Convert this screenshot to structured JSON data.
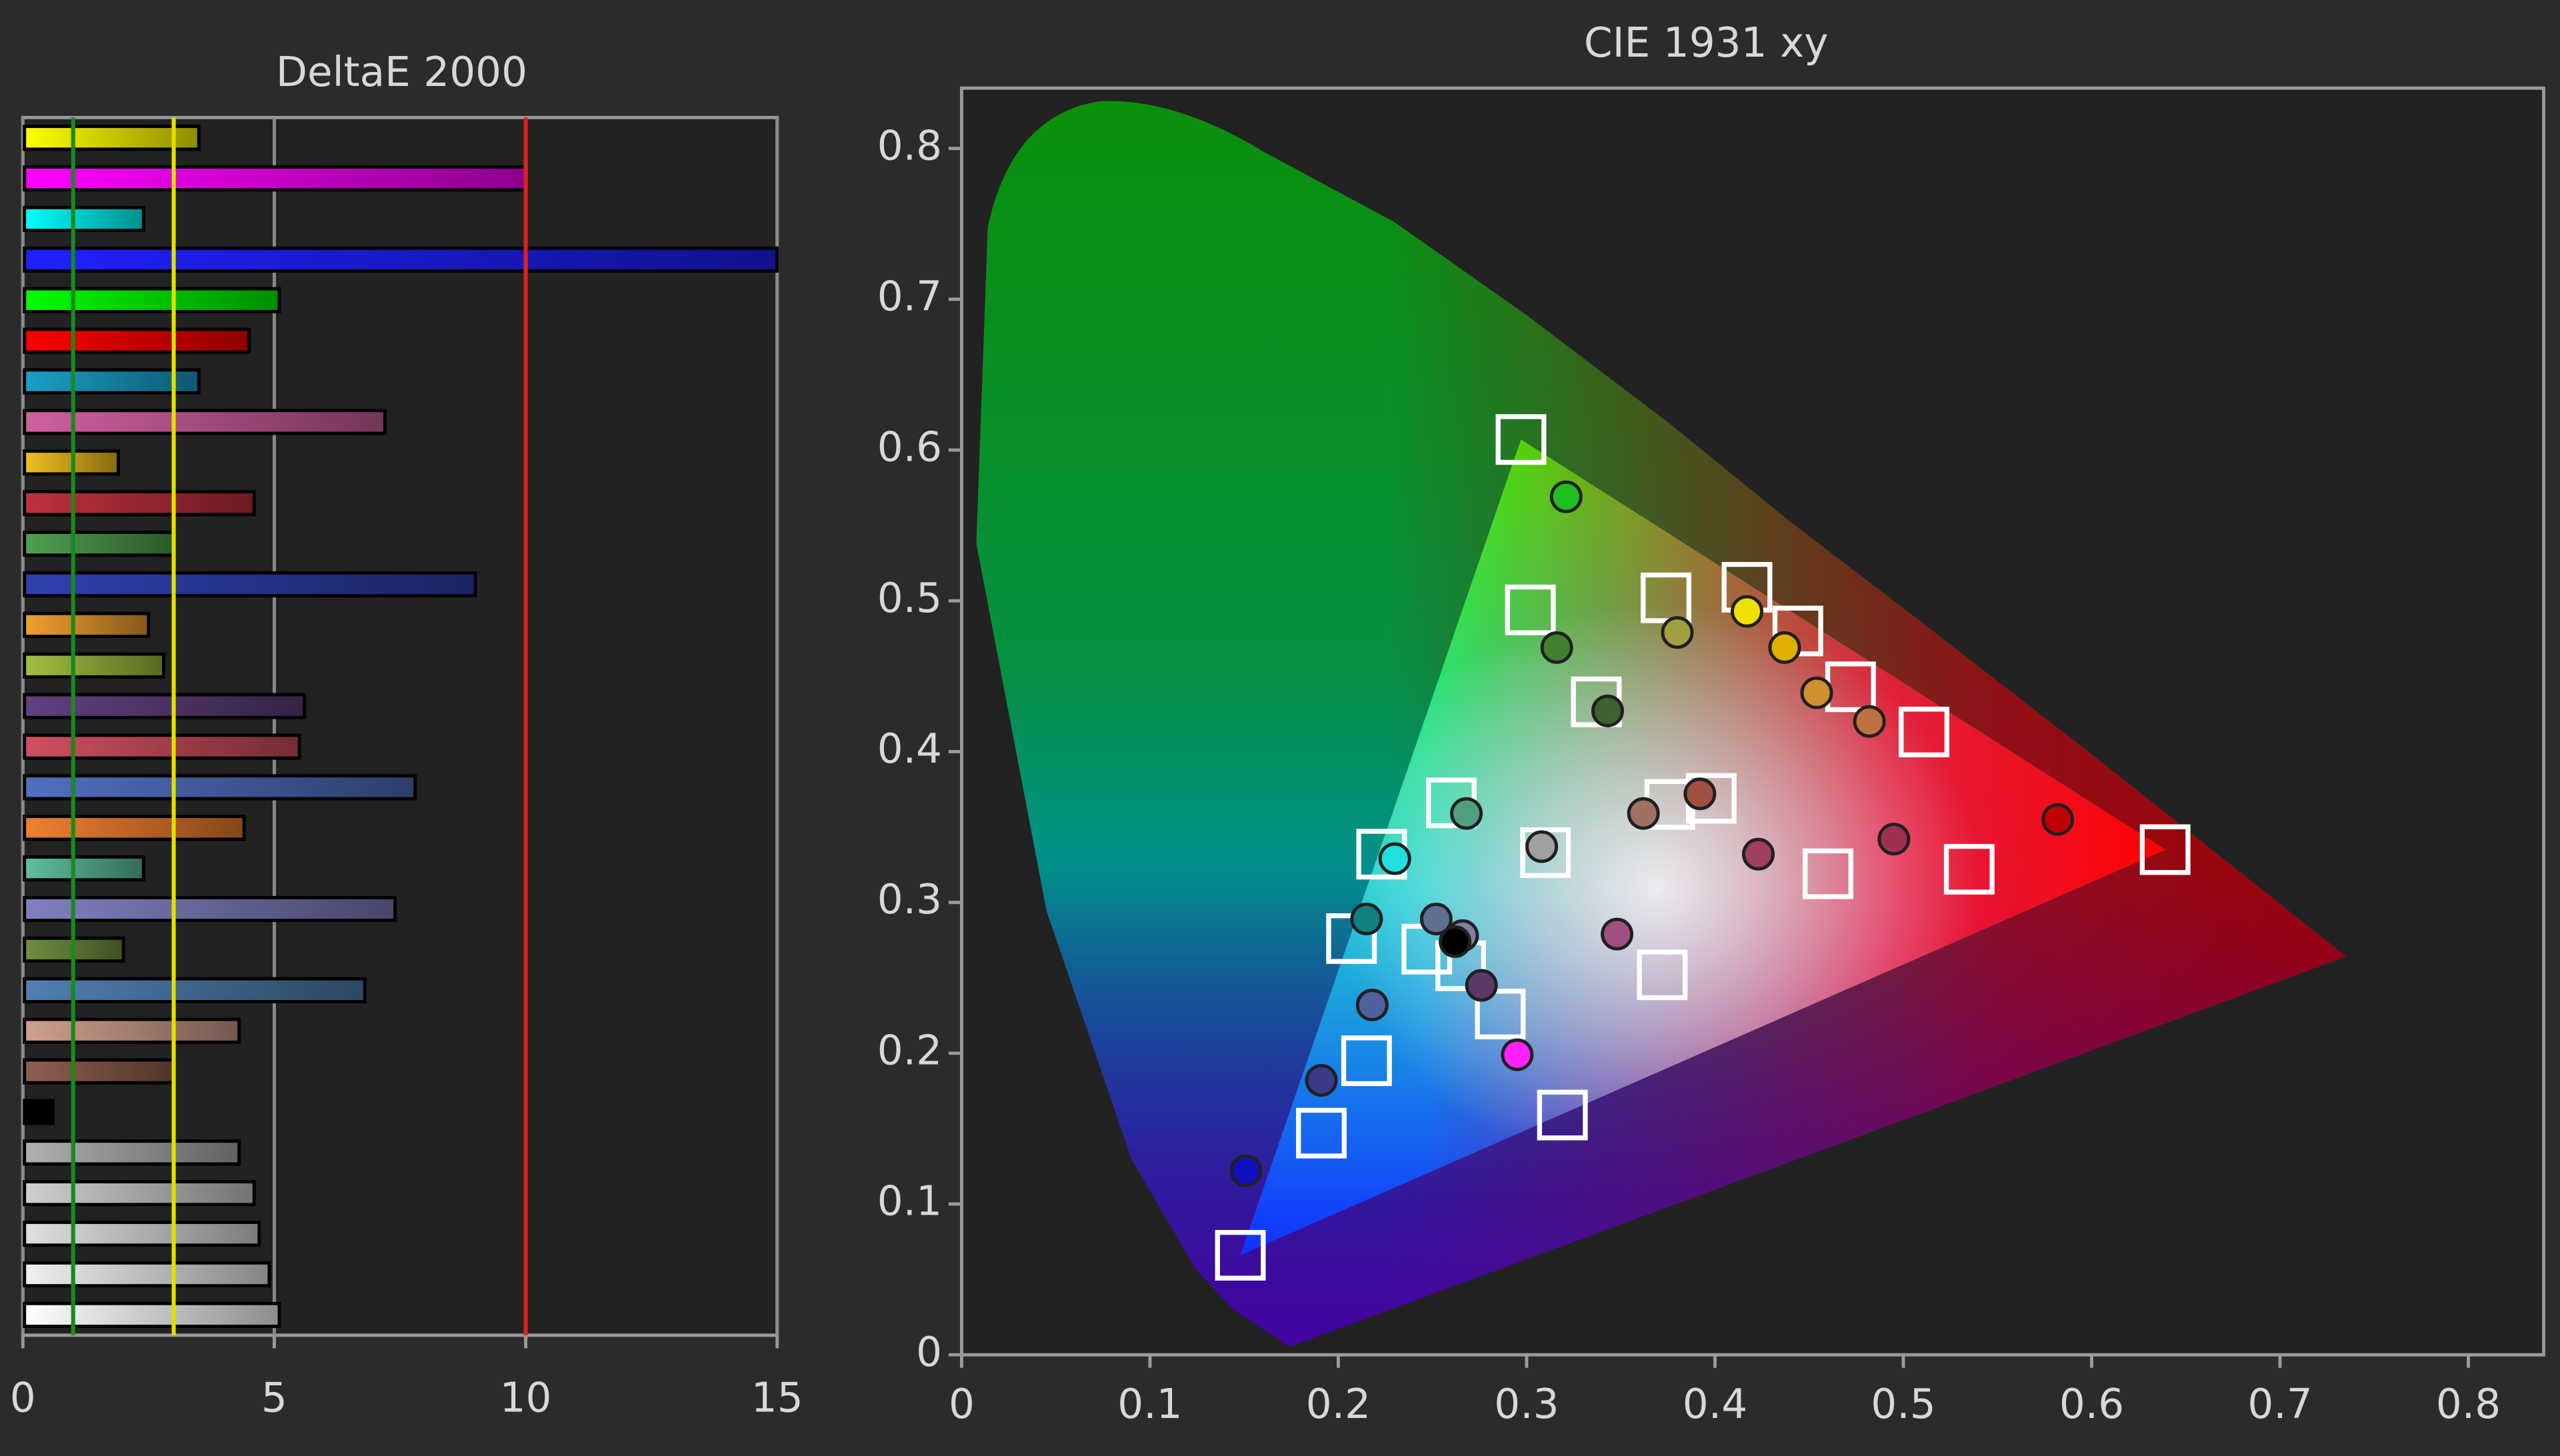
{
  "chart_data": [
    {
      "type": "bar",
      "orientation": "horizontal",
      "title": "DeltaE 2000",
      "values": [
        3.5,
        10.0,
        2.4,
        15,
        5.1,
        4.5,
        3.5,
        7.2,
        1.9,
        4.6,
        3.0,
        9.0,
        2.5,
        2.8,
        5.6,
        5.5,
        7.8,
        4.4,
        2.4,
        7.4,
        2.0,
        6.8,
        4.3,
        3.0,
        0.6,
        4.3,
        4.6,
        4.7,
        4.9,
        5.1
      ],
      "colors": [
        "#ffff00",
        "#ff00ff",
        "#00ffff",
        "#2020ff",
        "#00ff00",
        "#ff0000",
        "#1aa0c8",
        "#d060a0",
        "#f0c020",
        "#c03040",
        "#50a050",
        "#3040b0",
        "#f0a030",
        "#a0c040",
        "#604080",
        "#d05060",
        "#5070c0",
        "#f08030",
        "#60c0a0",
        "#8080c0",
        "#709040",
        "#5080b0",
        "#d0a090",
        "#906050",
        "#000000",
        "#b0b0b0",
        "#d0d0d0",
        "#e0e0e0",
        "#f0f0f0",
        "#ffffff"
      ],
      "xlim": [
        0,
        15
      ],
      "xticks": [
        0,
        5,
        10,
        15
      ],
      "grid": true,
      "reference_lines": [
        {
          "value": 1,
          "color": "#1a8a1a"
        },
        {
          "value": 3,
          "color": "#e0e000"
        },
        {
          "value": 10,
          "color": "#e02020"
        }
      ]
    },
    {
      "type": "scatter",
      "title": "CIE 1931 xy",
      "xlim": [
        0,
        0.84
      ],
      "ylim": [
        0,
        0.84
      ],
      "xticks": [
        0,
        0.1,
        0.2,
        0.3,
        0.4,
        0.5,
        0.6,
        0.7,
        0.8
      ],
      "yticks": [
        0,
        0.1,
        0.2,
        0.3,
        0.4,
        0.5,
        0.6,
        0.7,
        0.8
      ],
      "series": [
        {
          "marker": "square",
          "color": "#ffffff",
          "x": [
            0.639,
            0.297,
            0.148,
            0.417,
            0.444,
            0.472,
            0.511,
            0.374,
            0.302,
            0.337,
            0.26,
            0.223,
            0.207,
            0.247,
            0.265,
            0.286,
            0.215,
            0.191,
            0.319,
            0.372,
            0.46,
            0.535,
            0.398,
            0.376,
            0.31
          ],
          "values": [
            0.335,
            0.607,
            0.066,
            0.509,
            0.48,
            0.443,
            0.413,
            0.502,
            0.494,
            0.433,
            0.366,
            0.332,
            0.276,
            0.269,
            0.258,
            0.226,
            0.195,
            0.147,
            0.159,
            0.252,
            0.319,
            0.322,
            0.369,
            0.365,
            0.333
          ]
        },
        {
          "marker": "circle",
          "x": [
            0.582,
            0.321,
            0.151,
            0.417,
            0.437,
            0.454,
            0.482,
            0.38,
            0.316,
            0.343,
            0.268,
            0.23,
            0.215,
            0.252,
            0.266,
            0.276,
            0.218,
            0.191,
            0.295,
            0.348,
            0.423,
            0.495,
            0.392,
            0.362,
            0.308,
            0.262
          ],
          "values": [
            0.355,
            0.569,
            0.122,
            0.493,
            0.469,
            0.439,
            0.42,
            0.479,
            0.469,
            0.427,
            0.359,
            0.329,
            0.289,
            0.289,
            0.278,
            0.245,
            0.232,
            0.182,
            0.199,
            0.279,
            0.332,
            0.342,
            0.372,
            0.359,
            0.337,
            0.274
          ],
          "colors": [
            "#c00000",
            "#20c020",
            "#1010c0",
            "#f0e000",
            "#e0b000",
            "#d09030",
            "#c07040",
            "#a0a040",
            "#408030",
            "#406030",
            "#50a080",
            "#20e0e0",
            "#108080",
            "#607090",
            "#8080a0",
            "#5a3a6a",
            "#5060a0",
            "#3a3a8a",
            "#ff20ff",
            "#a05080",
            "#a04060",
            "#a03050",
            "#a05040",
            "#a07060",
            "#a0a0a0",
            "#000000"
          ]
        }
      ]
    }
  ]
}
